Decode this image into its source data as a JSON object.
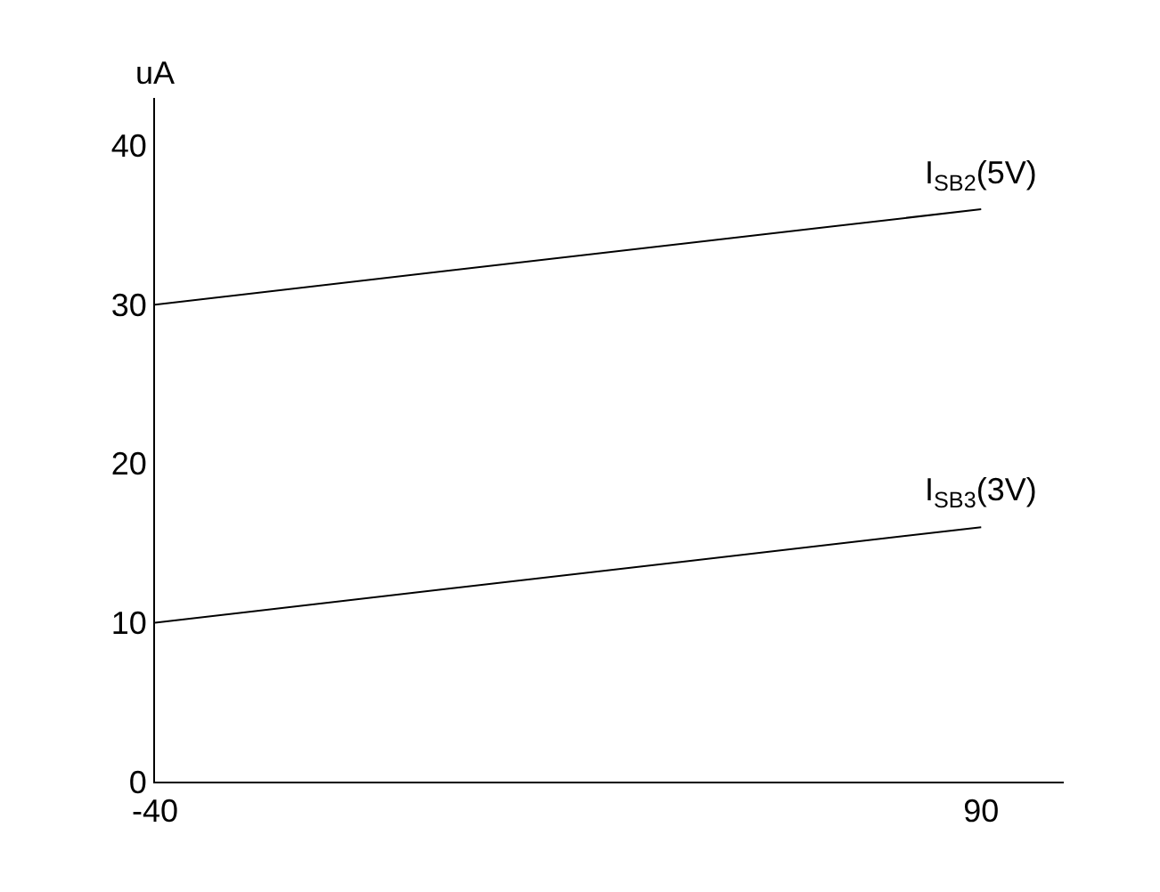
{
  "chart_data": {
    "type": "line",
    "ylabel": "uA",
    "x": [
      -40,
      90
    ],
    "series": [
      {
        "name": "I$_{SB2}$(5V)",
        "color": "#000000",
        "values": [
          30,
          36
        ]
      },
      {
        "name": "I$_{SB3}$(3V)",
        "color": "#000000",
        "values": [
          10,
          16
        ]
      }
    ],
    "xlim": [
      -40,
      103
    ],
    "xticks": [
      -40,
      90
    ],
    "ylim": [
      0,
      43
    ],
    "yticks": [
      0,
      10,
      20,
      30,
      40
    ],
    "legend": false,
    "marker": "none",
    "line_style": "solid"
  }
}
